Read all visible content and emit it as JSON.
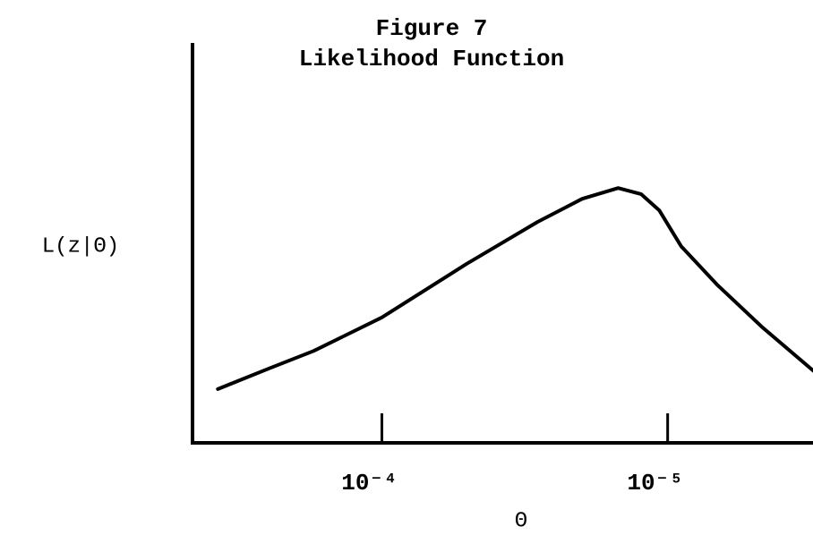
{
  "chart_data": {
    "type": "line",
    "title": "Figure 7",
    "subtitle": "Likelihood Function",
    "y_label": "L(z|Θ)",
    "x_label": "Θ",
    "xscale": "log",
    "xlim": [
      0.00046,
      3.1e-06
    ],
    "ylim": [
      0,
      1
    ],
    "xticks": [
      {
        "value": 0.0001,
        "label": "10⁻⁴"
      },
      {
        "value": 1e-05,
        "label": "10⁻⁵"
      }
    ],
    "color": "#000000",
    "x": [
      0.000375,
      0.000248,
      0.000173,
      0.0001,
      5.07e-05,
      2.85e-05,
      1.99e-05,
      1.49e-05,
      1.24e-05,
      1.07e-05,
      8.97e-06,
      6.73e-06,
      4.69e-06,
      3.08e-06
    ],
    "values": [
      0.135,
      0.187,
      0.231,
      0.315,
      0.449,
      0.555,
      0.613,
      0.64,
      0.625,
      0.584,
      0.494,
      0.398,
      0.292,
      0.18
    ]
  }
}
